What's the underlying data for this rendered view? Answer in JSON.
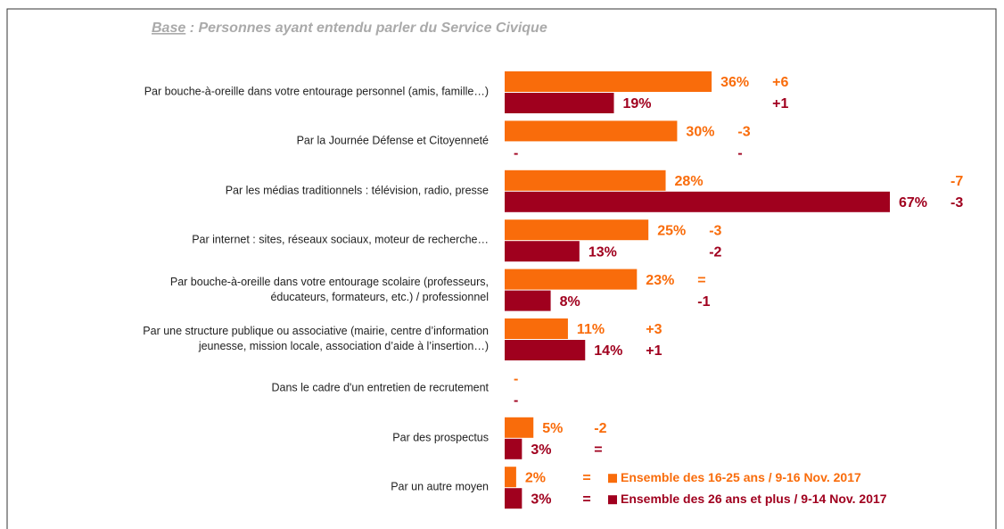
{
  "chart_data": {
    "type": "bar",
    "orientation": "horizontal",
    "subtitle_base": "Base",
    "subtitle": " : Personnes ayant entendu parler du Service Civique",
    "categories": [
      "Par bouche-à-oreille dans votre entourage personnel (amis, famille…)",
      "Par la Journée Défense et Citoyenneté",
      "Par les médias traditionnels : télévision, radio, presse",
      "Par internet : sites, réseaux sociaux,  moteur de recherche…",
      "Par bouche-à-oreille dans votre entourage scolaire (professeurs,\néducateurs, formateurs, etc.) / professionnel",
      "Par une structure publique ou associative (mairie, centre d’information\njeunesse, mission locale, association d’aide à l’insertion…)",
      "Dans le cadre d'un entretien de recrutement",
      "Par des prospectus",
      "Par un autre moyen"
    ],
    "series": [
      {
        "name": "Ensemble des 16-25 ans / 9-16 Nov. 2017",
        "color": "#f96c0b",
        "values": [
          36,
          30,
          28,
          25,
          23,
          11,
          null,
          5,
          2
        ],
        "value_labels": [
          "36%",
          "30%",
          "28%",
          "25%",
          "23%",
          "11%",
          "-",
          "5%",
          "2%"
        ],
        "changes": [
          "+6",
          "-3",
          "-7",
          "-3",
          "=",
          "+3",
          null,
          "-2",
          "="
        ]
      },
      {
        "name": "Ensemble des 26 ans et plus / 9-14 Nov. 2017",
        "color": "#a0001e",
        "values": [
          19,
          null,
          67,
          13,
          8,
          14,
          null,
          3,
          3
        ],
        "value_labels": [
          "19%",
          "-",
          "67%",
          "13%",
          "8%",
          "14%",
          "-",
          "3%",
          "3%"
        ],
        "changes": [
          "+1",
          "-",
          "-3",
          "-2",
          "-1",
          "+1",
          null,
          "=",
          "="
        ]
      }
    ]
  }
}
